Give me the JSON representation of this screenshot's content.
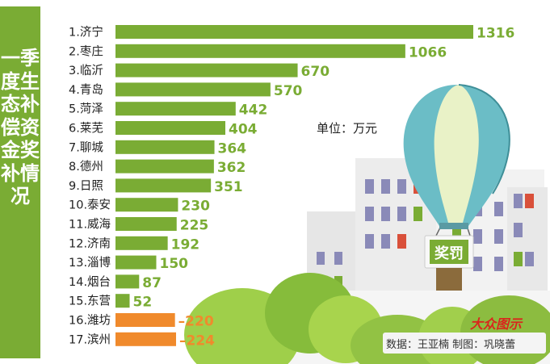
{
  "title": "一季度生态补偿资金奖补情况",
  "unit_label": "单位：万元",
  "source_note": "数据：王亚楠  制图：巩晓蕾",
  "brand_logo": "大众图示",
  "badge_text": "奖罚",
  "colors": {
    "positive": "#7aac34",
    "negative": "#f08a2c",
    "label": "#7aac34",
    "title_bg": "#7aac34"
  },
  "chart_data": {
    "type": "bar",
    "orientation": "horizontal",
    "categories": [
      "1.济宁",
      "2.枣庄",
      "3.临沂",
      "4.青岛",
      "5.菏泽",
      "6.莱芜",
      "7.聊城",
      "8.德州",
      "9.日照",
      "10.泰安",
      "11.威海",
      "12.济南",
      "13.淄博",
      "14.烟台",
      "15.东营",
      "16.潍坊",
      "17.滨州"
    ],
    "values": [
      1316,
      1066,
      670,
      570,
      442,
      404,
      364,
      362,
      351,
      230,
      225,
      192,
      150,
      87,
      52,
      -220,
      -224
    ],
    "value_labels": [
      "1316",
      "1066",
      "670",
      "570",
      "442",
      "404",
      "364",
      "362",
      "351",
      "230",
      "225",
      "192",
      "150",
      "87",
      "52",
      "–220",
      "–224"
    ],
    "title": "一季度生态补偿资金奖补情况",
    "unit": "单位：万元",
    "grid": false
  }
}
